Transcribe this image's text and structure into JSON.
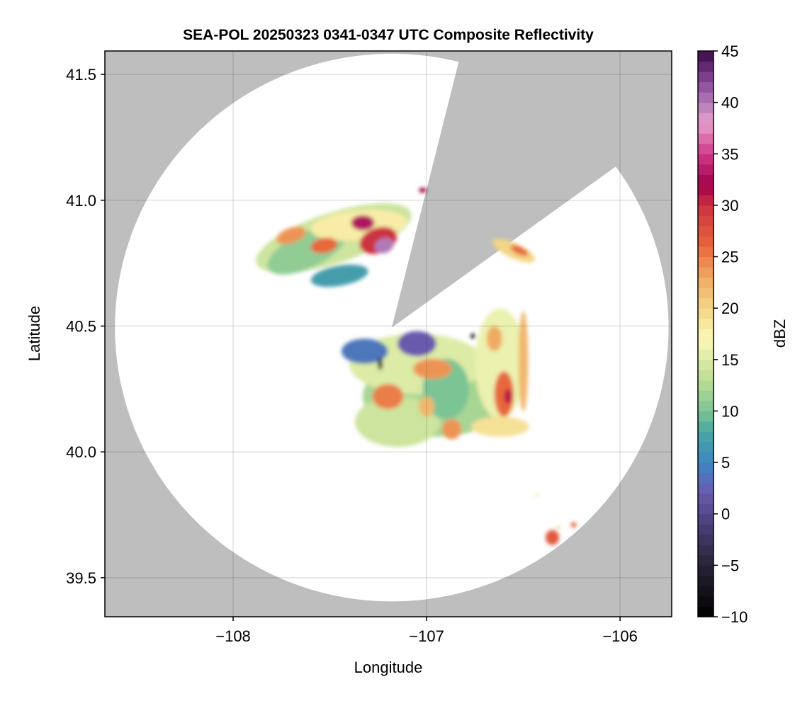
{
  "chart_data": {
    "type": "heatmap",
    "title": "SEA-POL 20250323 0341-0347 UTC Composite Reflectivity",
    "xlabel": "Longitude",
    "ylabel": "Latitude",
    "xlim": [
      -108.663,
      -105.733
    ],
    "ylim": [
      39.345,
      41.593
    ],
    "xticks": [
      -108,
      -107,
      -106
    ],
    "xtick_labels": [
      "−108",
      "−107",
      "−106"
    ],
    "yticks": [
      39.5,
      40.0,
      40.5,
      41.0,
      41.5
    ],
    "ytick_labels": [
      "39.5",
      "40.0",
      "40.5",
      "41.0",
      "41.5"
    ],
    "grid": true,
    "background_color": "#bebebe",
    "radar": {
      "lon": -107.18,
      "lat": 40.494,
      "range_km": 121,
      "blocked_sector_azimuth_deg": [
        14,
        54
      ]
    },
    "colorbar": {
      "label": "dBZ",
      "range": [
        -10,
        45
      ],
      "step": 1,
      "ticks": [
        -10,
        -5,
        0,
        5,
        10,
        15,
        20,
        25,
        30,
        35,
        40,
        45
      ],
      "tick_labels": [
        "−10",
        "−5",
        "0",
        "5",
        "10",
        "15",
        "20",
        "25",
        "30",
        "35",
        "40",
        "45"
      ],
      "stops": [
        [
          -10,
          "#000000"
        ],
        [
          -5,
          "#2a2236"
        ],
        [
          -1,
          "#4a3f78"
        ],
        [
          2,
          "#6a5aad"
        ],
        [
          5,
          "#3f86c2"
        ],
        [
          8,
          "#47a8a0"
        ],
        [
          10,
          "#7cc494"
        ],
        [
          13,
          "#bcdd94"
        ],
        [
          17,
          "#fbf8b8"
        ],
        [
          20,
          "#f2d585"
        ],
        [
          23,
          "#efaa62"
        ],
        [
          26,
          "#e8683c"
        ],
        [
          30,
          "#cc3040"
        ],
        [
          32,
          "#a0004a"
        ],
        [
          35,
          "#d03a8a"
        ],
        [
          38,
          "#e8a0cc"
        ],
        [
          40,
          "#b07ab8"
        ],
        [
          42,
          "#8a4898"
        ],
        [
          45,
          "#3a0a48"
        ]
      ]
    },
    "echoes": [
      {
        "lon": -107.48,
        "lat": 40.85,
        "rlon": 0.42,
        "rlat": 0.1,
        "rot": 18,
        "dbz": 14
      },
      {
        "lon": -107.62,
        "lat": 40.8,
        "rlon": 0.22,
        "rlat": 0.07,
        "rot": 25,
        "dbz": 11
      },
      {
        "lon": -107.35,
        "lat": 40.9,
        "rlon": 0.25,
        "rlat": 0.06,
        "rot": 5,
        "dbz": 18
      },
      {
        "lon": -107.45,
        "lat": 40.7,
        "rlon": 0.15,
        "rlat": 0.04,
        "rot": 10,
        "dbz": 7
      },
      {
        "lon": -107.25,
        "lat": 40.84,
        "rlon": 0.1,
        "rlat": 0.05,
        "rot": 20,
        "dbz": 30
      },
      {
        "lon": -107.22,
        "lat": 40.82,
        "rlon": 0.05,
        "rlat": 0.03,
        "rot": 20,
        "dbz": 40
      },
      {
        "lon": -107.33,
        "lat": 40.91,
        "rlon": 0.06,
        "rlat": 0.03,
        "rot": 0,
        "dbz": 33
      },
      {
        "lon": -107.7,
        "lat": 40.86,
        "rlon": 0.08,
        "rlat": 0.03,
        "rot": 20,
        "dbz": 24
      },
      {
        "lon": -107.53,
        "lat": 40.82,
        "rlon": 0.07,
        "rlat": 0.03,
        "rot": 10,
        "dbz": 26
      },
      {
        "lon": -107.02,
        "lat": 41.04,
        "rlon": 0.02,
        "rlat": 0.01,
        "rot": 0,
        "dbz": 32
      },
      {
        "lon": -106.55,
        "lat": 40.8,
        "rlon": 0.12,
        "rlat": 0.03,
        "rot": -25,
        "dbz": 20
      },
      {
        "lon": -106.52,
        "lat": 40.8,
        "rlon": 0.05,
        "rlat": 0.015,
        "rot": -25,
        "dbz": 26
      },
      {
        "lon": -106.95,
        "lat": 40.22,
        "rlon": 0.38,
        "rlat": 0.16,
        "rot": 0,
        "dbz": 12
      },
      {
        "lon": -107.05,
        "lat": 40.35,
        "rlon": 0.35,
        "rlat": 0.12,
        "rot": 0,
        "dbz": 15
      },
      {
        "lon": -107.15,
        "lat": 40.12,
        "rlon": 0.22,
        "rlat": 0.1,
        "rot": 0,
        "dbz": 14
      },
      {
        "lon": -107.32,
        "lat": 40.4,
        "rlon": 0.12,
        "rlat": 0.05,
        "rot": 0,
        "dbz": 4
      },
      {
        "lon": -107.05,
        "lat": 40.43,
        "rlon": 0.1,
        "rlat": 0.05,
        "rot": 0,
        "dbz": 2
      },
      {
        "lon": -106.9,
        "lat": 40.25,
        "rlon": 0.12,
        "rlat": 0.12,
        "rot": 0,
        "dbz": 10
      },
      {
        "lon": -106.62,
        "lat": 40.35,
        "rlon": 0.13,
        "rlat": 0.22,
        "rot": 0,
        "dbz": 16
      },
      {
        "lon": -106.5,
        "lat": 40.36,
        "rlon": 0.025,
        "rlat": 0.2,
        "rot": 0,
        "dbz": 22
      },
      {
        "lon": -106.62,
        "lat": 40.1,
        "rlon": 0.15,
        "rlat": 0.04,
        "rot": 0,
        "dbz": 19
      },
      {
        "lon": -107.2,
        "lat": 40.22,
        "rlon": 0.08,
        "rlat": 0.05,
        "rot": 0,
        "dbz": 25
      },
      {
        "lon": -106.97,
        "lat": 40.33,
        "rlon": 0.1,
        "rlat": 0.04,
        "rot": 0,
        "dbz": 24
      },
      {
        "lon": -106.6,
        "lat": 40.23,
        "rlon": 0.05,
        "rlat": 0.09,
        "rot": 0,
        "dbz": 26
      },
      {
        "lon": -106.58,
        "lat": 40.22,
        "rlon": 0.02,
        "rlat": 0.03,
        "rot": 0,
        "dbz": 31
      },
      {
        "lon": -106.65,
        "lat": 40.45,
        "rlon": 0.04,
        "rlat": 0.05,
        "rot": 0,
        "dbz": 23
      },
      {
        "lon": -106.87,
        "lat": 40.09,
        "rlon": 0.05,
        "rlat": 0.04,
        "rot": 0,
        "dbz": 24
      },
      {
        "lon": -107.0,
        "lat": 40.18,
        "rlon": 0.04,
        "rlat": 0.04,
        "rot": 0,
        "dbz": 22
      },
      {
        "lon": -107.24,
        "lat": 40.35,
        "rlon": 0.012,
        "rlat": 0.025,
        "rot": 0,
        "dbz": -9
      },
      {
        "lon": -106.76,
        "lat": 40.46,
        "rlon": 0.012,
        "rlat": 0.01,
        "rot": 0,
        "dbz": -10
      },
      {
        "lon": -106.35,
        "lat": 39.66,
        "rlon": 0.035,
        "rlat": 0.03,
        "rot": 0,
        "dbz": 27
      },
      {
        "lon": -106.24,
        "lat": 39.71,
        "rlon": 0.015,
        "rlat": 0.01,
        "rot": 0,
        "dbz": 27
      },
      {
        "lon": -106.32,
        "lat": 39.7,
        "rlon": 0.01,
        "rlat": 0.008,
        "rot": 0,
        "dbz": 20
      },
      {
        "lon": -106.43,
        "lat": 39.83,
        "rlon": 0.01,
        "rlat": 0.008,
        "rot": 0,
        "dbz": 16
      }
    ]
  }
}
